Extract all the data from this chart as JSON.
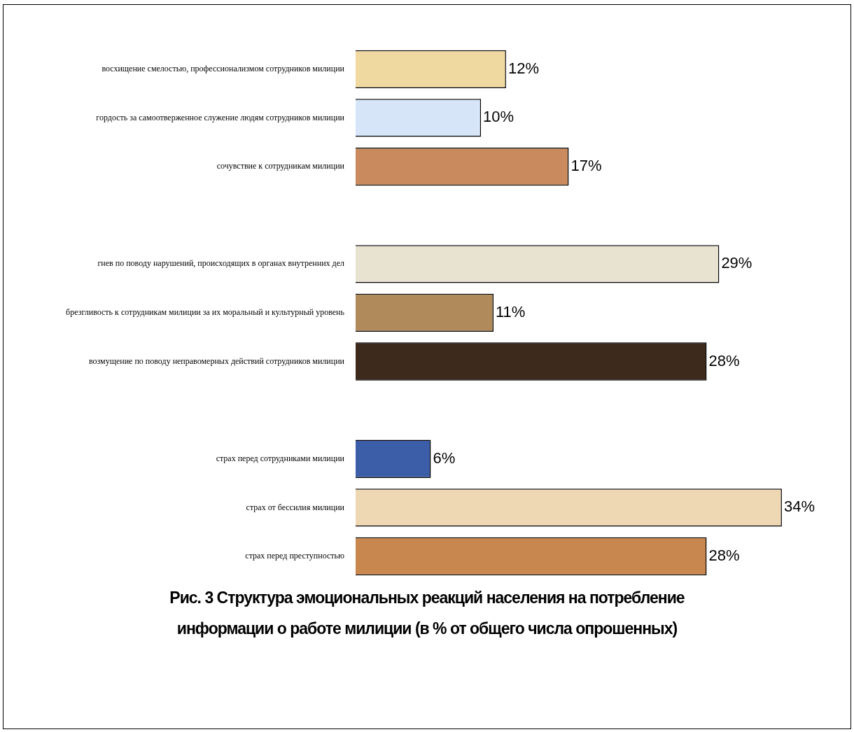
{
  "chart_data": {
    "type": "bar",
    "orientation": "horizontal",
    "title": "Рис. 3 Структура эмоциональных реакций населения на потребление информации о работе милиции (в % от общего числа опрошенных)",
    "categories": [
      "восхищение смелостью, профессионализмом сотрудников милиции",
      "гордость за самоотверженное служение людям сотрудников милиции",
      "сочувствие к сотрудникам милиции",
      null,
      "гнев по поводу нарушений, происходящих в органах внутренних дел",
      "брезгливость к сотрудникам милиции за их моральный и культурный уровень",
      "возмущение по поводу неправомерных действий сотрудников милиции",
      null,
      "страх перед сотрудниками милиции",
      "страх от бессилия милиции",
      "страх перед преступностью"
    ],
    "values": [
      12,
      10,
      17,
      null,
      29,
      11,
      28,
      null,
      6,
      34,
      28
    ],
    "colors": [
      "#f0d9a0",
      "#d6e6f8",
      "#c98b5e",
      null,
      "#e8e2d0",
      "#b08a5a",
      "#3e2a1c",
      null,
      "#3c5ea8",
      "#eed8b4",
      "#c8874e"
    ],
    "value_labels": [
      "12%",
      "10%",
      "17%",
      null,
      "29%",
      "11%",
      "28%",
      null,
      "6%",
      "34%",
      "28%"
    ],
    "legend": false,
    "grid": false,
    "tick_labels": "y"
  }
}
